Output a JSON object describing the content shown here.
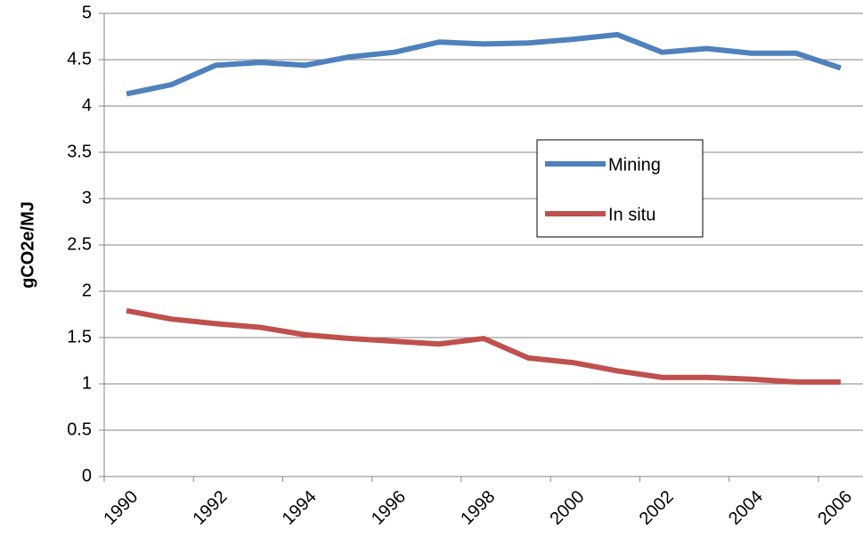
{
  "chart_data": {
    "type": "line",
    "y_label": "gCO2e/MJ",
    "categories": [
      "1990",
      null,
      "1992",
      null,
      "1994",
      null,
      "1996",
      null,
      "1998",
      null,
      "2000",
      null,
      "2002",
      null,
      "2004",
      null,
      "2006"
    ],
    "series": [
      {
        "name": "Mining",
        "color": "#4f81bd",
        "values": [
          4.13,
          4.23,
          4.44,
          4.47,
          4.44,
          4.53,
          4.58,
          4.69,
          4.67,
          4.68,
          4.72,
          4.77,
          4.58,
          4.62,
          4.57,
          4.57,
          4.41
        ]
      },
      {
        "name": "In situ",
        "color": "#c0504d",
        "values": [
          1.79,
          1.7,
          1.65,
          1.61,
          1.53,
          1.49,
          1.46,
          1.43,
          1.49,
          1.28,
          1.23,
          1.14,
          1.07,
          1.07,
          1.05,
          1.02,
          1.02
        ]
      }
    ],
    "ylim": [
      0,
      5
    ],
    "yticks": [
      0,
      0.5,
      1,
      1.5,
      2,
      2.5,
      3,
      3.5,
      4,
      4.5,
      5
    ],
    "grid": true
  }
}
